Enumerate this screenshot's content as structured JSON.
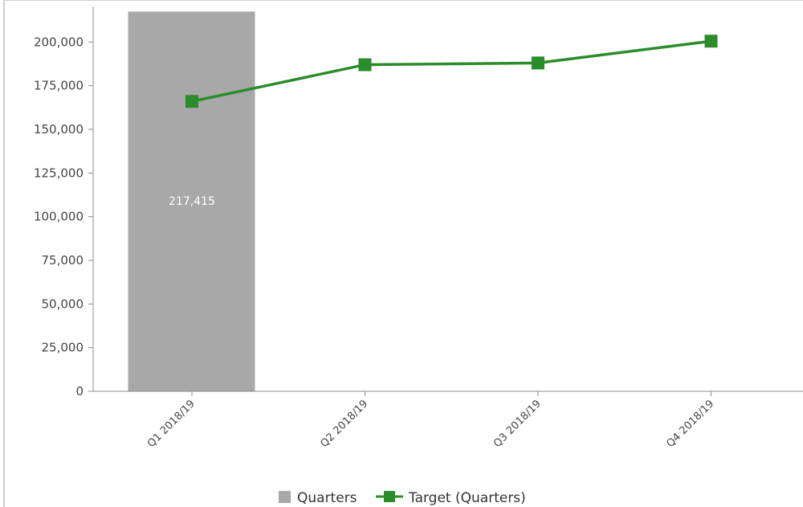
{
  "chart_data": {
    "type": "bar",
    "categories": [
      "Q1 2018/19",
      "Q2 2018/19",
      "Q3 2018/19",
      "Q4 2018/19"
    ],
    "series": [
      {
        "name": "Quarters",
        "type": "bar",
        "color": "#a8a8a8",
        "values": [
          217415,
          null,
          null,
          null
        ]
      },
      {
        "name": "Target (Quarters)",
        "type": "line",
        "color": "#2a8c2a",
        "values": [
          166000,
          187000,
          188000,
          200500
        ]
      }
    ],
    "data_labels": [
      "217,415"
    ],
    "y_ticks": [
      "0",
      "25,000",
      "50,000",
      "75,000",
      "100,000",
      "125,000",
      "150,000",
      "175,000",
      "200,000"
    ],
    "ylim": [
      0,
      219000
    ],
    "legend": {
      "position": "bottom-center",
      "entries": [
        "Quarters",
        "Target (Quarters)"
      ]
    },
    "grid": false
  }
}
